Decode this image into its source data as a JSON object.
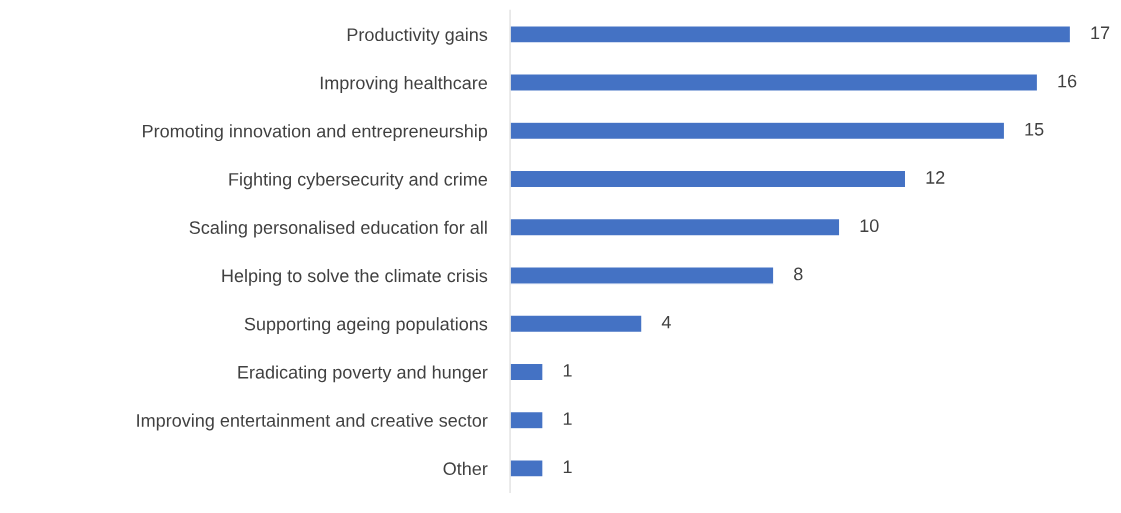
{
  "chart_data": {
    "type": "bar",
    "orientation": "horizontal",
    "categories": [
      "Productivity gains",
      "Improving healthcare",
      "Promoting innovation and entrepreneurship",
      "Fighting cybersecurity and crime",
      "Scaling personalised education for all",
      "Helping to solve the climate crisis",
      "Supporting ageing populations",
      "Eradicating poverty and hunger",
      "Improving entertainment and creative sector",
      "Other"
    ],
    "values": [
      17,
      16,
      15,
      12,
      10,
      8,
      4,
      1,
      1,
      1
    ],
    "color": "#4472c4",
    "data_labels": true,
    "grid": false,
    "legend": false
  }
}
